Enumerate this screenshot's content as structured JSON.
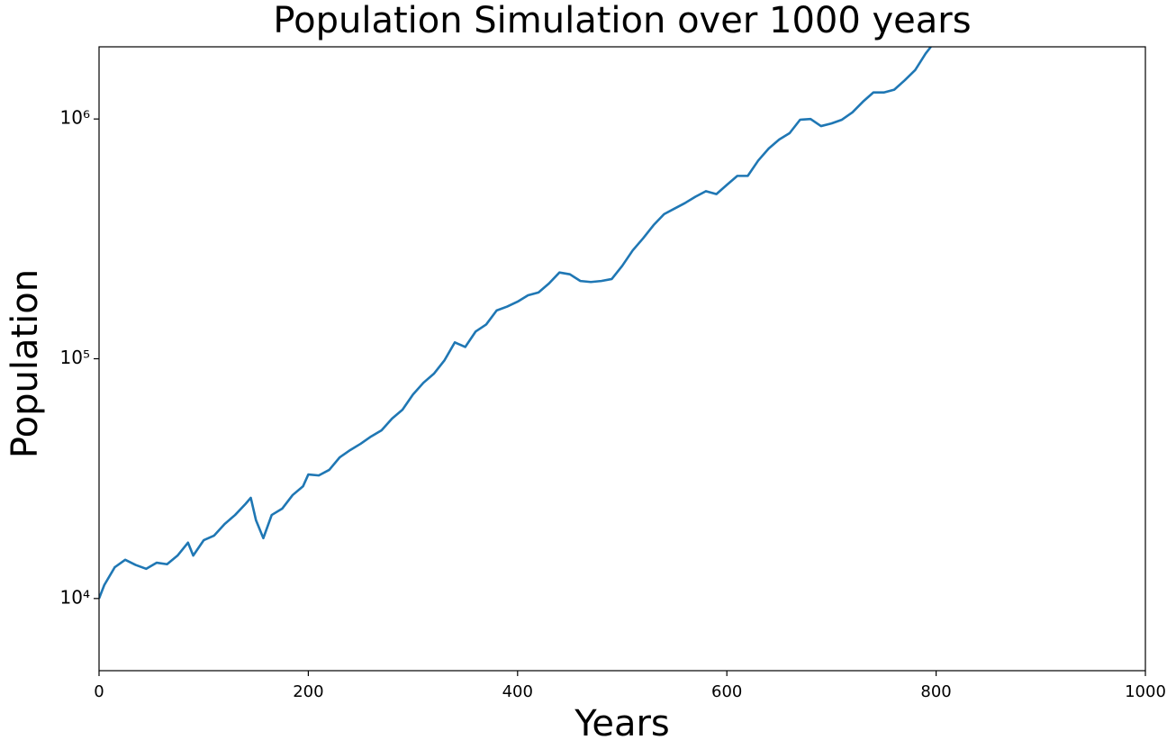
{
  "chart_data": {
    "type": "line",
    "title": "Population Simulation over 1000 years",
    "x_label": "Years",
    "y_label": "Population",
    "x": [
      0,
      5,
      15,
      25,
      35,
      45,
      55,
      65,
      75,
      85,
      90,
      100,
      110,
      120,
      130,
      140,
      145,
      150,
      157,
      165,
      175,
      185,
      195,
      200,
      210,
      220,
      230,
      240,
      250,
      260,
      270,
      280,
      290,
      300,
      310,
      320,
      330,
      340,
      350,
      360,
      370,
      380,
      390,
      400,
      410,
      420,
      430,
      440,
      450,
      460,
      470,
      480,
      490,
      500,
      510,
      520,
      530,
      540,
      550,
      560,
      570,
      580,
      590,
      600,
      610,
      620,
      630,
      640,
      650,
      660,
      670,
      680,
      690,
      700,
      710,
      720,
      730,
      740,
      750,
      760,
      770,
      780,
      790,
      795
    ],
    "series": [
      {
        "color": "#1f77b4",
        "values": [
          10000,
          11380,
          13500,
          14500,
          13800,
          13300,
          14100,
          13900,
          15100,
          17100,
          15100,
          17500,
          18300,
          20450,
          22300,
          24800,
          26300,
          21200,
          17850,
          22300,
          23700,
          27000,
          29400,
          32900,
          32600,
          34400,
          38800,
          41600,
          44200,
          47400,
          50300,
          56300,
          61300,
          70900,
          79400,
          86600,
          98300,
          117000,
          112000,
          130000,
          139000,
          159000,
          165000,
          173000,
          184000,
          189000,
          206000,
          229000,
          225000,
          211000,
          209000,
          211000,
          215000,
          244000,
          283000,
          318000,
          361000,
          401000,
          423000,
          446000,
          474000,
          500000,
          486000,
          531000,
          579000,
          579000,
          671000,
          753000,
          821000,
          873000,
          993000,
          1000000,
          934000,
          958000,
          993000,
          1066000,
          1180000,
          1290000,
          1290000,
          1325000,
          1450000,
          1600000,
          1875000,
          2000000
        ]
      }
    ],
    "xlim": [
      0,
      1000
    ],
    "xticks": [
      0,
      200,
      400,
      600,
      800,
      1000
    ],
    "ylim": [
      5000,
      2000000
    ],
    "y_scale": "log",
    "yticks": [
      {
        "value": 10000,
        "label": "10⁴"
      },
      {
        "value": 100000,
        "label": "10⁵"
      },
      {
        "value": 1000000,
        "label": "10⁶"
      }
    ]
  }
}
